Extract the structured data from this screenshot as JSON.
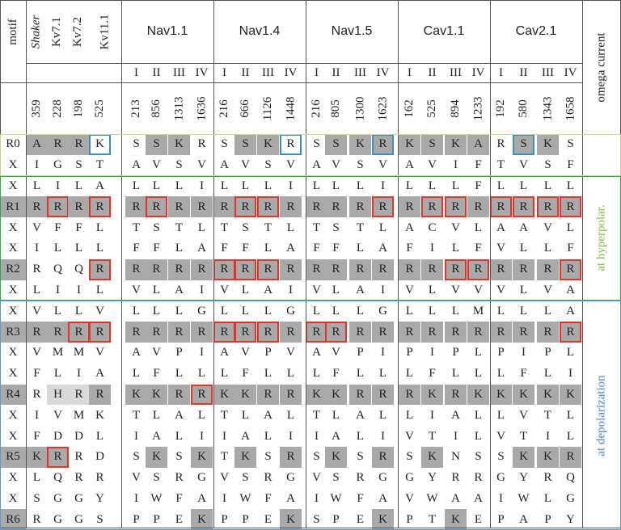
{
  "header": {
    "motif": "motif",
    "shaker": "Shaker",
    "kv71": "Kv7.1",
    "kv72": "Kv7.2",
    "kv111": "Kv11.1",
    "channels": [
      "Nav1.1",
      "Nav1.4",
      "Nav1.5",
      "Cav1.1",
      "Cav2.1"
    ],
    "domains": [
      "I",
      "II",
      "III",
      "IV"
    ],
    "omega": "omega current"
  },
  "positions": [
    "359",
    "228",
    "198",
    "525",
    "213",
    "856",
    "1313",
    "1636",
    "216",
    "666",
    "1126",
    "1448",
    "216",
    "805",
    "1300",
    "1623",
    "162",
    "525",
    "894",
    "1233",
    "192",
    "580",
    "1343",
    "1658"
  ],
  "labels": {
    "hyperpolar": "at hyperpolar.",
    "depolar": "at depolarization"
  },
  "colors": {
    "gray": "#a9a9a9",
    "light_gray": "#d9d9d9",
    "red_box": "#e0342b",
    "blue_box": "#3f8fb5",
    "yellow_green_box": "#c6d98a",
    "green_box": "#2fa84f",
    "blue_region_box": "#5b9bd5",
    "hyperpolar_text": "#8ab84a",
    "depolar_text": "#4a86c8"
  },
  "rows": [
    {
      "motif": "R0",
      "res": "ARRKSSKRSSKRSSKRKSKARSKS",
      "gray": "0111001100110011111110110",
      "red": "",
      "blue": "000100000001000100000100"
    },
    {
      "motif": "X",
      "res": "IGSTAVSVAVSVAVSVAVIFTVSF",
      "gray": "",
      "red": "",
      "blue": ""
    },
    {
      "motif": "X",
      "res": "LILALLLILLLILLLILLLFLLLL",
      "gray": "",
      "red": "",
      "blue": ""
    },
    {
      "motif": "R1",
      "res": "RRRRRRRRRRRRRRRRRRRRRRRR",
      "gray": "1111111111111111111111111",
      "red": "010101000110000101101111",
      "blue": ""
    },
    {
      "motif": "X",
      "res": "VFFLTSTLTSTLTSTLACVLAAVL",
      "gray": "",
      "red": "",
      "blue": ""
    },
    {
      "motif": "X",
      "res": "ILLLFFLAFFLAFFLAFILFVLLF",
      "gray": "",
      "red": "",
      "blue": ""
    },
    {
      "motif": "R2",
      "res": "RQQRRRRRRRRRRRRRRRRRRRRR",
      "gray": "1000111111111111111111111",
      "red": "000100001110000000110001",
      "blue": ""
    },
    {
      "motif": "X",
      "res": "LIILVLAIVLAIVLAIVLVVVLVA",
      "gray": "",
      "red": "",
      "blue": ""
    },
    {
      "motif": "X",
      "res": "VLLVLLLGLLLGLLLGLLLMLLLA",
      "gray": "",
      "red": "",
      "blue": ""
    },
    {
      "motif": "R3",
      "res": "RRRRRRRRRRRRRRRRRRRRRRRR",
      "gray": "1111111111111111111111111",
      "red": "001100001110110000000001",
      "blue": ""
    },
    {
      "motif": "X",
      "res": "VMMVAVPIAVPVAVPIPIPLPIPL",
      "gray": "",
      "red": "",
      "blue": ""
    },
    {
      "motif": "X",
      "res": "FLIALFLLLFLLLFLLLFLLLFLI",
      "gray": "",
      "red": "",
      "blue": ""
    },
    {
      "motif": "R4",
      "res": "RHRRKKRRKKRRKKRRRKRKKKKK",
      "gray": "1022111111111111111111111",
      "red": "000000010000000000000000",
      "blue": ""
    },
    {
      "motif": "X",
      "res": "IVMKTLALTLALTLALLIALLVTL",
      "gray": "",
      "red": "",
      "blue": ""
    },
    {
      "motif": "X",
      "res": "FDDLIALIIALIIALIVTILVTIL",
      "gray": "",
      "red": "",
      "blue": ""
    },
    {
      "motif": "R5",
      "res": "KRRDSKSKTKSRSKSRSKNSSKKR",
      "gray": "1110001010101010101000111",
      "red": "010000000000000000000000",
      "blue": ""
    },
    {
      "motif": "X",
      "res": "LQRRVSRGVSRGVSRGGYRRGYRQ",
      "gray": "",
      "red": "",
      "blue": ""
    },
    {
      "motif": "X",
      "res": "SGGYIWFAIWFAIWFAVWAAIWLG",
      "gray": "",
      "red": "",
      "blue": ""
    },
    {
      "motif": "R6",
      "res": "RGGSPPEKPPEKSPEKPTKEPAPY",
      "gray": "1000000010001000100100000",
      "red": "",
      "blue": ""
    }
  ]
}
